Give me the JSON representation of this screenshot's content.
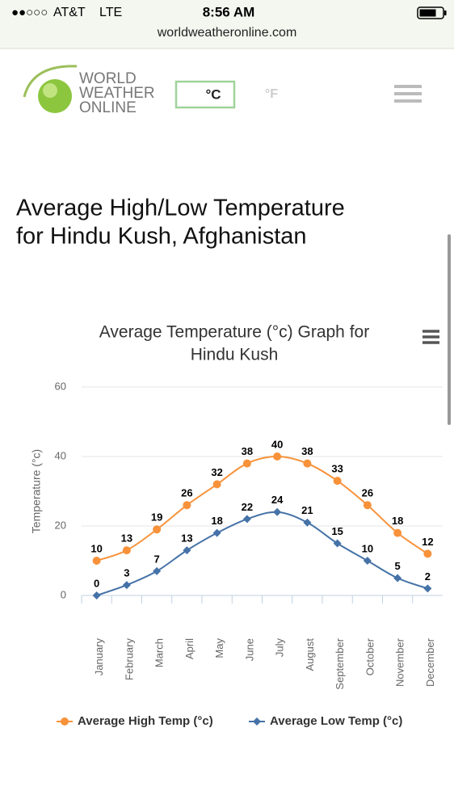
{
  "status_bar": {
    "signal": "●●○○○",
    "carrier": "AT&T",
    "network": "LTE",
    "time": "8:56 AM",
    "url": "worldweatheronline.com"
  },
  "header": {
    "logo": [
      "WORLD",
      "WEATHER",
      "ONLINE"
    ],
    "unit_celsius": "°C",
    "unit_fahrenheit": "°F"
  },
  "page_title": [
    "Average High/Low Temperature",
    "for Hindu Kush, Afghanistan"
  ],
  "chart_data": {
    "type": "line",
    "title": [
      "Average Temperature (°c) Graph for",
      "Hindu Kush"
    ],
    "y_label": "Temperature (°c)",
    "categories": [
      "January",
      "February",
      "March",
      "April",
      "May",
      "June",
      "July",
      "August",
      "September",
      "October",
      "November",
      "December"
    ],
    "series": [
      {
        "name": "Average High Temp (°c)",
        "color": "#f7923a",
        "marker": "circle",
        "values": [
          10,
          13,
          19,
          26,
          32,
          38,
          40,
          38,
          33,
          26,
          18,
          12
        ]
      },
      {
        "name": "Average Low Temp (°c)",
        "color": "#4572a7",
        "marker": "diamond",
        "values": [
          0,
          3,
          7,
          13,
          18,
          22,
          24,
          21,
          15,
          10,
          5,
          2
        ]
      }
    ],
    "ylim": [
      0,
      60
    ],
    "yticks": [
      0,
      20,
      40,
      60
    ],
    "grid": true,
    "legend": "bottom"
  }
}
